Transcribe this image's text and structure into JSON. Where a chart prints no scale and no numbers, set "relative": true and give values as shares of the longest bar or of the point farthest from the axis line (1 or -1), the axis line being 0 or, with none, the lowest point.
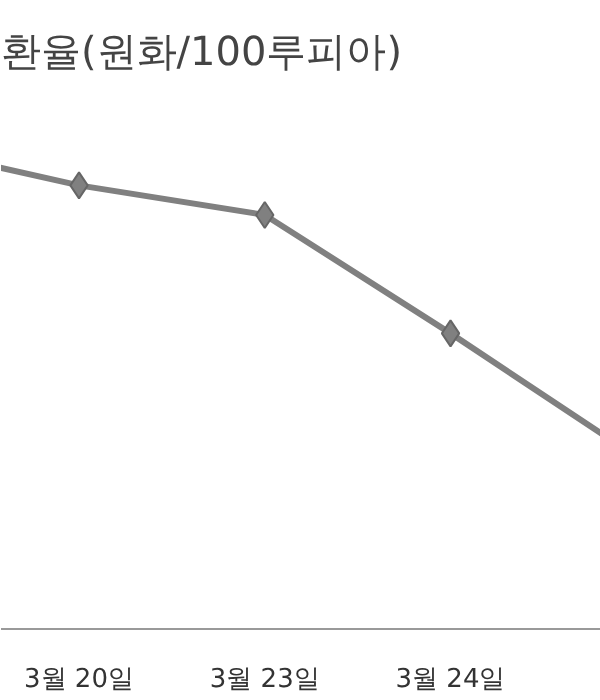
{
  "chart_data": {
    "type": "line",
    "title": "환율(원화/100루피아)",
    "relative": true,
    "categories": [
      null,
      "3월 20일",
      "3월 23일",
      "3월 24일",
      null
    ],
    "series": [
      {
        "color": "#808080",
        "values": [
          1,
          0.914,
          0.853,
          0.609,
          0.355
        ]
      }
    ],
    "marker": "diamond"
  }
}
